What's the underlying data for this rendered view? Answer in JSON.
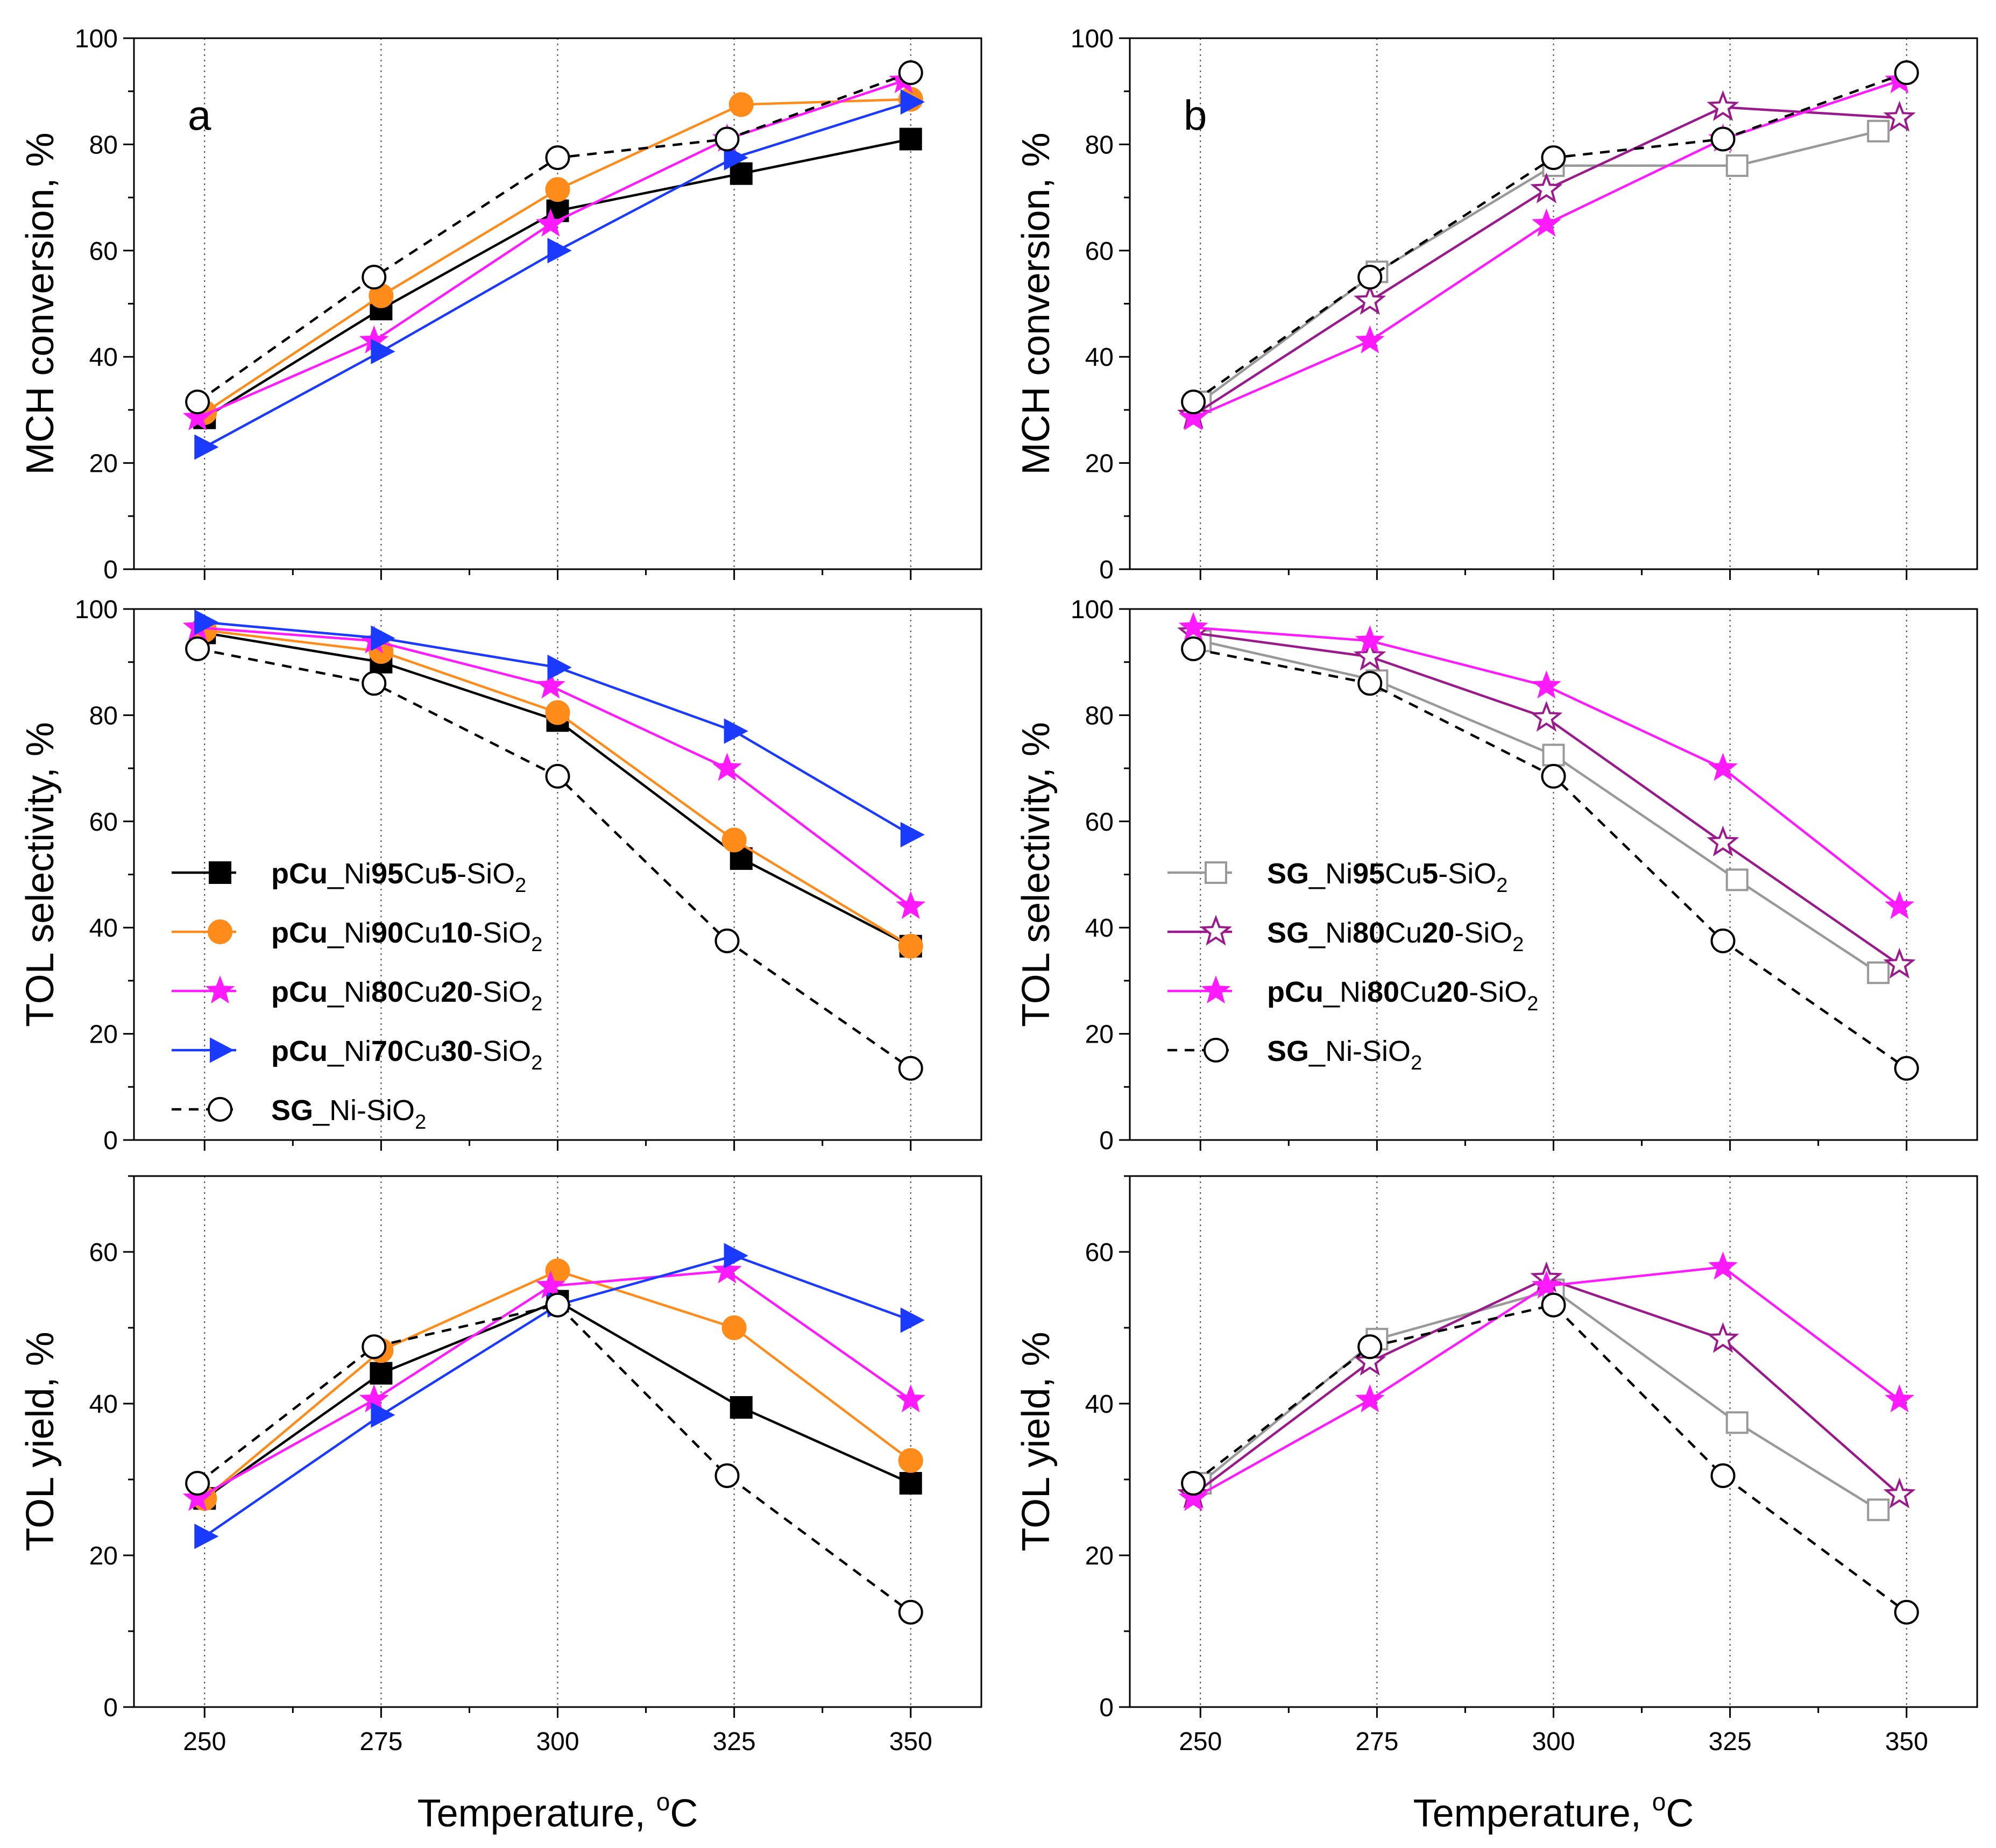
{
  "figure": {
    "x_title": "Temperature, °C",
    "x_title_main": "Temperature, ",
    "x_title_sup": "o",
    "x_title_unit": "C"
  },
  "chart_data": [
    {
      "id": "a-conv",
      "panel": "a",
      "type": "line",
      "ylabel": "MCH conversion, %",
      "ylim": [
        0,
        100
      ],
      "yticks": [
        0,
        20,
        40,
        60,
        80,
        100
      ],
      "xlim": [
        240,
        360
      ],
      "xticks": [
        250,
        275,
        300,
        325,
        350
      ],
      "show_xtick_labels": false,
      "vgrid": true,
      "panel_label": "a",
      "series": [
        {
          "name": "pCu_Ni95Cu5-SiO2",
          "x": [
            250,
            275,
            300,
            326,
            350
          ],
          "y": [
            28.5,
            49,
            67.5,
            74.5,
            81
          ],
          "color": "#000000",
          "marker": "square-filled",
          "dash": false
        },
        {
          "name": "pCu_Ni90Cu10-SiO2",
          "x": [
            250,
            275,
            300,
            326,
            350
          ],
          "y": [
            29.5,
            51.5,
            71.5,
            87.5,
            88.5
          ],
          "color": "#ff8c1a",
          "marker": "circle-filled",
          "dash": false
        },
        {
          "name": "pCu_Ni80Cu20-SiO2",
          "x": [
            249,
            274,
            299,
            324,
            349
          ],
          "y": [
            28.5,
            43,
            65,
            81,
            92
          ],
          "color": "#ff1aff",
          "marker": "star-filled",
          "dash": false
        },
        {
          "name": "pCu_Ni70Cu30-SiO2",
          "x": [
            250,
            275,
            300,
            325,
            350
          ],
          "y": [
            23,
            41,
            60,
            77.5,
            88
          ],
          "color": "#1a3aff",
          "marker": "triangle-right-filled",
          "dash": false
        },
        {
          "name": "SG_Ni-SiO2",
          "x": [
            249,
            274,
            300,
            324,
            350
          ],
          "y": [
            31.5,
            55,
            77.5,
            81,
            93.5
          ],
          "color": "#000000",
          "marker": "circle-open",
          "dash": true
        }
      ]
    },
    {
      "id": "b-conv",
      "panel": "b",
      "type": "line",
      "ylabel": "MCH conversion, %",
      "ylim": [
        0,
        100
      ],
      "yticks": [
        0,
        20,
        40,
        60,
        80,
        100
      ],
      "xlim": [
        240,
        360
      ],
      "xticks": [
        250,
        275,
        300,
        325,
        350
      ],
      "show_xtick_labels": false,
      "vgrid": true,
      "panel_label": "b",
      "series": [
        {
          "name": "SG_Ni95Cu5-SiO2",
          "x": [
            250,
            275,
            300,
            326,
            346
          ],
          "y": [
            31.5,
            56,
            76,
            76,
            82.5
          ],
          "color": "#999999",
          "marker": "square-open",
          "dash": false
        },
        {
          "name": "SG_Ni80Cu20-SiO2",
          "x": [
            249,
            274,
            299,
            324,
            349
          ],
          "y": [
            29,
            50.5,
            71.5,
            87,
            85
          ],
          "color": "#9a1a8c",
          "marker": "star-open",
          "dash": false
        },
        {
          "name": "pCu_Ni80Cu20-SiO2",
          "x": [
            249,
            274,
            299,
            324,
            349
          ],
          "y": [
            28.5,
            43,
            65,
            81,
            92
          ],
          "color": "#ff1aff",
          "marker": "star-filled",
          "dash": false
        },
        {
          "name": "SG_Ni-SiO2",
          "x": [
            249,
            274,
            300,
            324,
            350
          ],
          "y": [
            31.5,
            55,
            77.5,
            81,
            93.5
          ],
          "color": "#000000",
          "marker": "circle-open",
          "dash": true
        }
      ]
    },
    {
      "id": "a-sel",
      "panel": "a",
      "type": "line",
      "ylabel": "TOL selectivity, %",
      "ylim": [
        0,
        100
      ],
      "yticks": [
        0,
        20,
        40,
        60,
        80,
        100
      ],
      "xlim": [
        240,
        360
      ],
      "xticks": [
        250,
        275,
        300,
        325,
        350
      ],
      "show_xtick_labels": false,
      "vgrid": true,
      "legend": {
        "position": "bottom-left",
        "items": [
          {
            "bold": "pCu",
            "mid": "_Ni",
            "b2": "95",
            "mid2": "Cu",
            "b3": "5",
            "tail": "-SiO",
            "sub": "2",
            "series": 0
          },
          {
            "bold": "pCu",
            "mid": "_Ni",
            "b2": "90",
            "mid2": "Cu",
            "b3": "10",
            "tail": "-SiO",
            "sub": "2",
            "series": 1
          },
          {
            "bold": "pCu",
            "mid": "_Ni",
            "b2": "80",
            "mid2": "Cu",
            "b3": "20",
            "tail": "-SiO",
            "sub": "2",
            "series": 2
          },
          {
            "bold": "pCu",
            "mid": "_Ni",
            "b2": "70",
            "mid2": "Cu",
            "b3": "30",
            "tail": "-SiO",
            "sub": "2",
            "series": 3
          },
          {
            "bold": "SG",
            "mid": "_Ni-SiO",
            "b2": "",
            "mid2": "",
            "b3": "",
            "tail": "",
            "sub": "2",
            "series": 4
          }
        ]
      },
      "series": [
        {
          "name": "pCu_Ni95Cu5-SiO2",
          "x": [
            250,
            275,
            300,
            326,
            350
          ],
          "y": [
            95.5,
            90,
            79,
            53,
            36.5
          ],
          "color": "#000000",
          "marker": "square-filled",
          "dash": false
        },
        {
          "name": "pCu_Ni90Cu10-SiO2",
          "x": [
            250,
            275,
            300,
            325,
            350
          ],
          "y": [
            96,
            92,
            80.5,
            56.5,
            36.5
          ],
          "color": "#ff8c1a",
          "marker": "circle-filled",
          "dash": false
        },
        {
          "name": "pCu_Ni80Cu20-SiO2",
          "x": [
            249,
            274,
            299,
            324,
            350
          ],
          "y": [
            96.5,
            94,
            85.5,
            70,
            44
          ],
          "color": "#ff1aff",
          "marker": "star-filled",
          "dash": false
        },
        {
          "name": "pCu_Ni70Cu30-SiO2",
          "x": [
            250,
            275,
            300,
            325,
            350
          ],
          "y": [
            97.5,
            94.5,
            89,
            77,
            57.5
          ],
          "color": "#1a3aff",
          "marker": "triangle-right-filled",
          "dash": false
        },
        {
          "name": "SG_Ni-SiO2",
          "x": [
            249,
            274,
            300,
            324,
            350
          ],
          "y": [
            92.5,
            86,
            68.5,
            37.5,
            13.5
          ],
          "color": "#000000",
          "marker": "circle-open",
          "dash": true
        }
      ]
    },
    {
      "id": "b-sel",
      "panel": "b",
      "type": "line",
      "ylabel": "TOL selectivity, %",
      "ylim": [
        0,
        100
      ],
      "yticks": [
        0,
        20,
        40,
        60,
        80,
        100
      ],
      "xlim": [
        240,
        360
      ],
      "xticks": [
        250,
        275,
        300,
        325,
        350
      ],
      "show_xtick_labels": false,
      "vgrid": true,
      "legend": {
        "position": "bottom-left",
        "items": [
          {
            "bold": "SG",
            "mid": "_Ni",
            "b2": "95",
            "mid2": "Cu",
            "b3": "5",
            "tail": "-SiO",
            "sub": "2",
            "series": 0
          },
          {
            "bold": "SG",
            "mid": "_Ni",
            "b2": "80",
            "mid2": "Cu",
            "b3": "20",
            "tail": "-SiO",
            "sub": "2",
            "series": 1
          },
          {
            "bold": "pCu",
            "mid": "_Ni",
            "b2": "80",
            "mid2": "Cu",
            "b3": "20",
            "tail": "-SiO",
            "sub": "2",
            "series": 2
          },
          {
            "bold": "SG",
            "mid": "_Ni-SiO",
            "b2": "",
            "mid2": "",
            "b3": "",
            "tail": "",
            "sub": "2",
            "series": 3
          }
        ]
      },
      "series": [
        {
          "name": "SG_Ni95Cu5-SiO2",
          "x": [
            250,
            275,
            300,
            326,
            346
          ],
          "y": [
            94,
            86.5,
            72.5,
            49,
            31.5
          ],
          "color": "#999999",
          "marker": "square-open",
          "dash": false
        },
        {
          "name": "SG_Ni80Cu20-SiO2",
          "x": [
            249,
            274,
            299,
            324,
            349
          ],
          "y": [
            95.5,
            91,
            79.5,
            56,
            33
          ],
          "color": "#9a1a8c",
          "marker": "star-open",
          "dash": false
        },
        {
          "name": "pCu_Ni80Cu20-SiO2",
          "x": [
            249,
            274,
            299,
            324,
            349
          ],
          "y": [
            96.5,
            94,
            85.5,
            70,
            44
          ],
          "color": "#ff1aff",
          "marker": "star-filled",
          "dash": false
        },
        {
          "name": "SG_Ni-SiO2",
          "x": [
            249,
            274,
            300,
            324,
            350
          ],
          "y": [
            92.5,
            86,
            68.5,
            37.5,
            13.5
          ],
          "color": "#000000",
          "marker": "circle-open",
          "dash": true
        }
      ]
    },
    {
      "id": "a-yield",
      "panel": "a",
      "type": "line",
      "ylabel": "TOL yield, %",
      "ylim": [
        0,
        70
      ],
      "yticks": [
        0,
        20,
        40,
        60
      ],
      "xlim": [
        240,
        360
      ],
      "xticks": [
        250,
        275,
        300,
        325,
        350
      ],
      "show_xtick_labels": true,
      "vgrid": true,
      "series": [
        {
          "name": "pCu_Ni95Cu5-SiO2",
          "x": [
            250,
            275,
            300,
            326,
            350
          ],
          "y": [
            27.5,
            44,
            53.5,
            39.5,
            29.5
          ],
          "color": "#000000",
          "marker": "square-filled",
          "dash": false
        },
        {
          "name": "pCu_Ni90Cu10-SiO2",
          "x": [
            250,
            275,
            300,
            325,
            350
          ],
          "y": [
            27.5,
            47,
            57.5,
            50,
            32.5
          ],
          "color": "#ff8c1a",
          "marker": "circle-filled",
          "dash": false
        },
        {
          "name": "pCu_Ni80Cu20-SiO2",
          "x": [
            249,
            274,
            299,
            324,
            350
          ],
          "y": [
            27.5,
            40.5,
            55.5,
            57.5,
            40.5
          ],
          "color": "#ff1aff",
          "marker": "star-filled",
          "dash": false
        },
        {
          "name": "pCu_Ni70Cu30-SiO2",
          "x": [
            250,
            275,
            300,
            325,
            350
          ],
          "y": [
            22.5,
            38.5,
            53,
            59.5,
            51
          ],
          "color": "#1a3aff",
          "marker": "triangle-right-filled",
          "dash": false
        },
        {
          "name": "SG_Ni-SiO2",
          "x": [
            249,
            274,
            300,
            324,
            350
          ],
          "y": [
            29.5,
            47.5,
            53,
            30.5,
            12.5
          ],
          "color": "#000000",
          "marker": "circle-open",
          "dash": true
        }
      ]
    },
    {
      "id": "b-yield",
      "panel": "b",
      "type": "line",
      "ylabel": "TOL yield, %",
      "ylim": [
        0,
        70
      ],
      "yticks": [
        0,
        20,
        40,
        60
      ],
      "xlim": [
        240,
        360
      ],
      "xticks": [
        250,
        275,
        300,
        325,
        350
      ],
      "show_xtick_labels": true,
      "vgrid": true,
      "series": [
        {
          "name": "SG_Ni95Cu5-SiO2",
          "x": [
            250,
            275,
            300,
            326,
            346
          ],
          "y": [
            29.5,
            48.5,
            55,
            37.5,
            26
          ],
          "color": "#999999",
          "marker": "square-open",
          "dash": false
        },
        {
          "name": "SG_Ni80Cu20-SiO2",
          "x": [
            249,
            274,
            299,
            324,
            349
          ],
          "y": [
            28,
            45.5,
            56.5,
            48.5,
            28
          ],
          "color": "#9a1a8c",
          "marker": "star-open",
          "dash": false
        },
        {
          "name": "pCu_Ni80Cu20-SiO2",
          "x": [
            249,
            274,
            299,
            324,
            349
          ],
          "y": [
            27.5,
            40.5,
            55.5,
            58,
            40.5
          ],
          "color": "#ff1aff",
          "marker": "star-filled",
          "dash": false
        },
        {
          "name": "SG_Ni-SiO2",
          "x": [
            249,
            274,
            300,
            324,
            350
          ],
          "y": [
            29.5,
            47.5,
            53,
            30.5,
            12.5
          ],
          "color": "#000000",
          "marker": "circle-open",
          "dash": true
        }
      ]
    }
  ]
}
